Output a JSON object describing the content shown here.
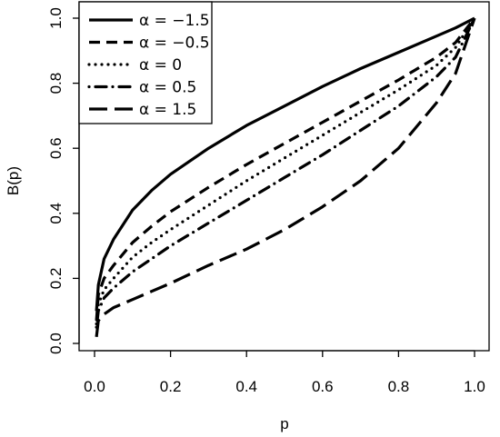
{
  "chart_data": {
    "type": "line",
    "xlabel": "p",
    "ylabel": "B(p)",
    "xlim": [
      0.0,
      1.0
    ],
    "ylim": [
      0.0,
      1.0
    ],
    "x_ticks": [
      "0.0",
      "0.2",
      "0.4",
      "0.6",
      "0.8",
      "1.0"
    ],
    "y_ticks": [
      "0.0",
      "0.2",
      "0.4",
      "0.6",
      "0.8",
      "1.0"
    ],
    "grid": false,
    "legend_position": "top-left",
    "series": [
      {
        "name": "α = −1.5",
        "line_style": "solid",
        "x": [
          0.005,
          0.01,
          0.025,
          0.05,
          0.1,
          0.15,
          0.2,
          0.3,
          0.4,
          0.5,
          0.6,
          0.7,
          0.8,
          0.9,
          0.95,
          1.0
        ],
        "y": [
          0.1,
          0.18,
          0.26,
          0.32,
          0.41,
          0.47,
          0.52,
          0.6,
          0.67,
          0.73,
          0.79,
          0.845,
          0.895,
          0.945,
          0.97,
          1.0
        ]
      },
      {
        "name": "α = −0.5",
        "line_style": "dashed",
        "x": [
          0.005,
          0.01,
          0.025,
          0.05,
          0.1,
          0.15,
          0.2,
          0.3,
          0.4,
          0.5,
          0.6,
          0.7,
          0.8,
          0.9,
          0.95,
          1.0
        ],
        "y": [
          0.07,
          0.15,
          0.2,
          0.24,
          0.31,
          0.36,
          0.405,
          0.48,
          0.55,
          0.615,
          0.68,
          0.745,
          0.81,
          0.88,
          0.925,
          1.0
        ]
      },
      {
        "name": "α = 0",
        "line_style": "dotted",
        "x": [
          0.005,
          0.01,
          0.025,
          0.05,
          0.1,
          0.15,
          0.2,
          0.3,
          0.4,
          0.5,
          0.6,
          0.7,
          0.8,
          0.9,
          0.95,
          1.0
        ],
        "y": [
          0.06,
          0.12,
          0.165,
          0.2,
          0.265,
          0.31,
          0.35,
          0.425,
          0.5,
          0.57,
          0.64,
          0.71,
          0.78,
          0.855,
          0.91,
          1.0
        ]
      },
      {
        "name": "α = 0.5",
        "line_style": "dot-dash",
        "x": [
          0.005,
          0.01,
          0.025,
          0.05,
          0.1,
          0.15,
          0.2,
          0.3,
          0.4,
          0.5,
          0.6,
          0.7,
          0.8,
          0.9,
          0.95,
          1.0
        ],
        "y": [
          0.05,
          0.1,
          0.14,
          0.17,
          0.22,
          0.26,
          0.3,
          0.37,
          0.44,
          0.51,
          0.58,
          0.655,
          0.73,
          0.82,
          0.88,
          1.0
        ]
      },
      {
        "name": "α = 1.5",
        "line_style": "long-dash",
        "x": [
          0.005,
          0.01,
          0.025,
          0.05,
          0.1,
          0.15,
          0.2,
          0.3,
          0.4,
          0.5,
          0.6,
          0.7,
          0.8,
          0.9,
          0.95,
          1.0
        ],
        "y": [
          0.02,
          0.07,
          0.09,
          0.11,
          0.135,
          0.16,
          0.185,
          0.24,
          0.29,
          0.35,
          0.42,
          0.5,
          0.6,
          0.74,
          0.83,
          1.0
        ]
      }
    ]
  }
}
